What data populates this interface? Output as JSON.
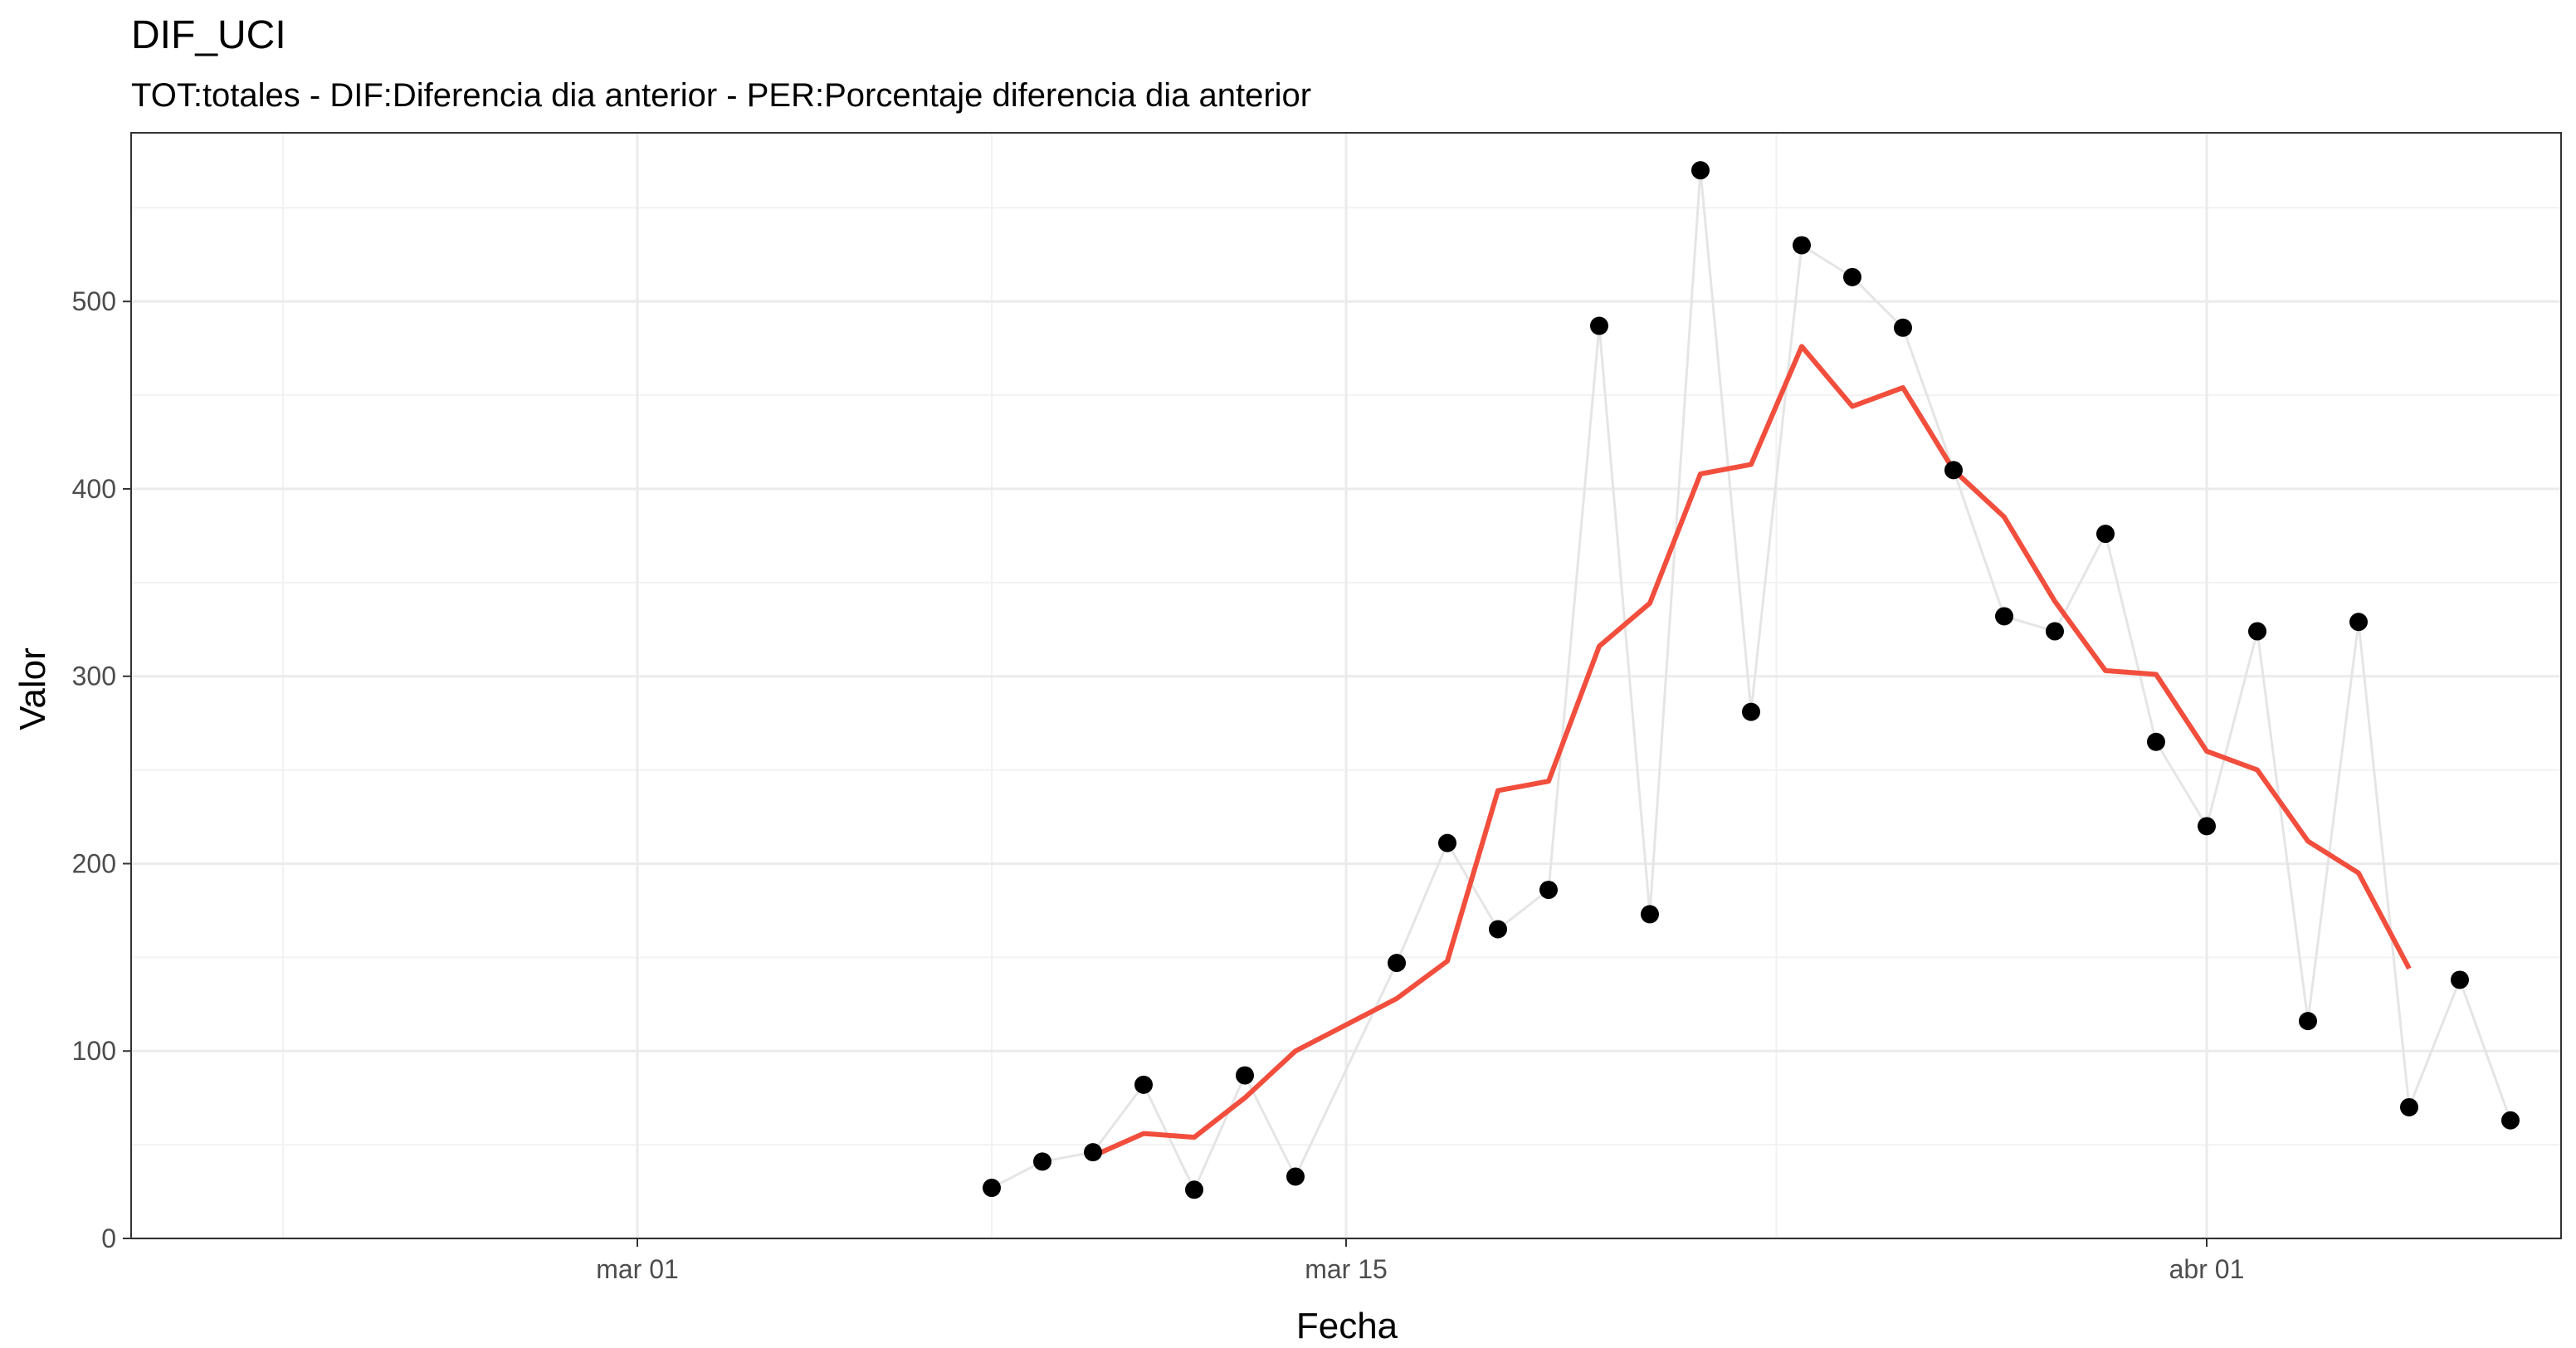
{
  "chart_data": {
    "type": "line",
    "title": "DIF_UCI",
    "subtitle": "TOT:totales - DIF:Diferencia dia anterior - PER:Porcentaje diferencia dia anterior",
    "xlabel": "Fecha",
    "ylabel": "Valor",
    "x_range": [
      "2020-02-20",
      "2020-04-08"
    ],
    "ylim": [
      0,
      590
    ],
    "x_ticks": [
      {
        "date": "2020-03-01",
        "label": "mar 01"
      },
      {
        "date": "2020-03-15",
        "label": "mar 15"
      },
      {
        "date": "2020-04-01",
        "label": "abr 01"
      }
    ],
    "y_ticks": [
      0,
      100,
      200,
      300,
      400,
      500
    ],
    "grid": true,
    "legend": "none",
    "colors": {
      "points": "#000000",
      "connector_line": "#e5e5e5",
      "moving_average": "#f24e3d",
      "grid_major": "#ebebeb",
      "grid_minor": "#f2f2f2",
      "border": "#333333"
    },
    "series": [
      {
        "style": "points-with-light-line",
        "x": [
          "2020-03-08",
          "2020-03-09",
          "2020-03-10",
          "2020-03-11",
          "2020-03-12",
          "2020-03-13",
          "2020-03-14",
          "2020-03-16",
          "2020-03-17",
          "2020-03-18",
          "2020-03-19",
          "2020-03-20",
          "2020-03-21",
          "2020-03-22",
          "2020-03-23",
          "2020-03-24",
          "2020-03-25",
          "2020-03-26",
          "2020-03-27",
          "2020-03-28",
          "2020-03-29",
          "2020-03-30",
          "2020-03-31",
          "2020-04-01",
          "2020-04-02",
          "2020-04-03",
          "2020-04-04",
          "2020-04-05",
          "2020-04-06",
          "2020-04-07"
        ],
        "values": [
          27,
          41,
          46,
          82,
          26,
          87,
          33,
          147,
          211,
          165,
          186,
          487,
          173,
          570,
          281,
          530,
          513,
          486,
          410,
          332,
          324,
          376,
          265,
          220,
          324,
          116,
          329,
          70,
          138,
          63
        ]
      },
      {
        "style": "smooth-line",
        "x": [
          "2020-03-10",
          "2020-03-11",
          "2020-03-12",
          "2020-03-13",
          "2020-03-14",
          "2020-03-16",
          "2020-03-17",
          "2020-03-18",
          "2020-03-19",
          "2020-03-20",
          "2020-03-21",
          "2020-03-22",
          "2020-03-23",
          "2020-03-24",
          "2020-03-25",
          "2020-03-26",
          "2020-03-27",
          "2020-03-28",
          "2020-03-29",
          "2020-03-30",
          "2020-03-31",
          "2020-04-01",
          "2020-04-02",
          "2020-04-03",
          "2020-04-04",
          "2020-04-05"
        ],
        "values": [
          44,
          56,
          54,
          75,
          100,
          128,
          148,
          239,
          244,
          316,
          339,
          408,
          413,
          476,
          444,
          454,
          410,
          385,
          340,
          303,
          301,
          260,
          250,
          212,
          195,
          144
        ]
      }
    ]
  }
}
